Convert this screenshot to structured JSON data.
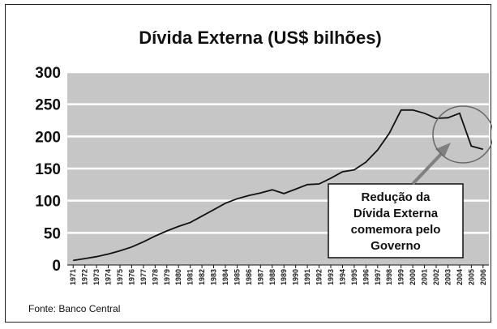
{
  "chart_data": {
    "type": "line",
    "title": "Dívida Externa (US$ bilhões)",
    "xlabel": "",
    "ylabel": "",
    "ylim": [
      0,
      300
    ],
    "yticks": [
      "0",
      "50",
      "100",
      "150",
      "200",
      "250",
      "300"
    ],
    "grid": true,
    "legend": "none",
    "categories": [
      "1971",
      "1972",
      "1973",
      "1974",
      "1975",
      "1976",
      "1977",
      "1978",
      "1979",
      "1980",
      "1981",
      "1982",
      "1983",
      "1984",
      "1985",
      "1986",
      "1987",
      "1988",
      "1989",
      "1990",
      "1991",
      "1992",
      "1993",
      "1994",
      "1995",
      "1996",
      "1997",
      "1998",
      "1999",
      "2000",
      "2001",
      "2002",
      "2003",
      "2004",
      "2005",
      "2006"
    ],
    "series": [
      {
        "values": [
          7,
          10,
          13,
          17,
          22,
          28,
          36,
          45,
          53,
          60,
          66,
          76,
          86,
          96,
          103,
          108,
          112,
          117,
          111,
          118,
          125,
          126,
          135,
          145,
          148,
          160,
          179,
          205,
          241,
          241,
          236,
          228,
          229,
          236,
          185,
          180
        ]
      }
    ],
    "annotations": [
      {
        "text_lines": [
          "Redução da",
          "Dívida Externa",
          "comemora pelo",
          "Governo"
        ],
        "marker": "circle"
      }
    ],
    "source": "Fonte: Banco Central",
    "colors": {
      "plot_bg": "#c6c6c6",
      "gridline": "#ffffff",
      "line": "#111111",
      "arrow": "#808080"
    }
  }
}
